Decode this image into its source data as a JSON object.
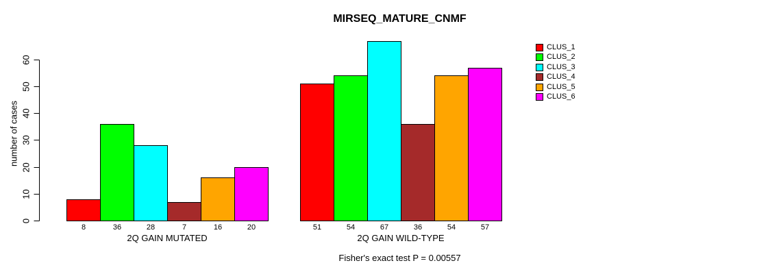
{
  "chart_data": {
    "type": "bar",
    "title": "MIRSEQ_MATURE_CNMF",
    "ylabel": "number of cases",
    "xlabel": "",
    "ylim": [
      0,
      67
    ],
    "yticks": [
      0,
      10,
      20,
      30,
      40,
      50,
      60
    ],
    "grid": false,
    "legend_position": "right-inside",
    "bar_value_labels": true,
    "categories": [
      "2Q GAIN MUTATED",
      "2Q GAIN WILD-TYPE"
    ],
    "series": [
      {
        "name": "CLUS_1",
        "color": "#FF0000",
        "values": [
          8,
          51
        ]
      },
      {
        "name": "CLUS_2",
        "color": "#00FF00",
        "values": [
          36,
          54
        ]
      },
      {
        "name": "CLUS_3",
        "color": "#00FFFF",
        "values": [
          28,
          67
        ]
      },
      {
        "name": "CLUS_4",
        "color": "#A52A2A",
        "values": [
          7,
          36
        ]
      },
      {
        "name": "CLUS_5",
        "color": "#FFA500",
        "values": [
          16,
          54
        ]
      },
      {
        "name": "CLUS_6",
        "color": "#FF00FF",
        "values": [
          20,
          57
        ]
      }
    ],
    "annotation": "Fisher's exact test P = 0.00557"
  },
  "colors": {
    "background": "#FFFFFF",
    "axis": "#000000",
    "text": "#000000",
    "bar_border": "#000000"
  }
}
